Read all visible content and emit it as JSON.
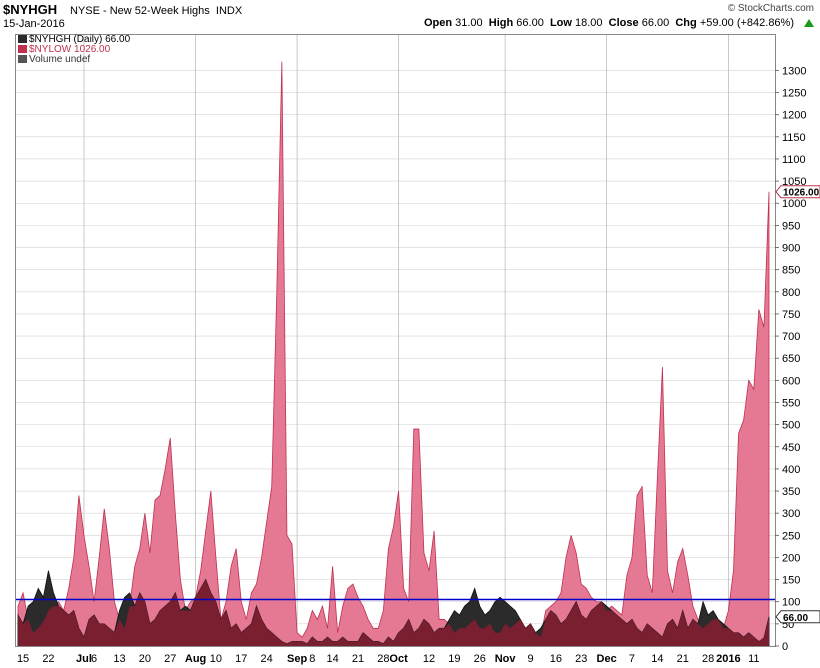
{
  "header": {
    "symbol": "$NYHGH",
    "description": "NYSE - New 52-Week Highs",
    "exchange": "INDX",
    "date": "15-Jan-2016",
    "brand": "© StockCharts.com",
    "open_label": "Open",
    "open": "31.00",
    "high_label": "High",
    "high": "66.00",
    "low_label": "Low",
    "low": "18.00",
    "close_label": "Close",
    "close": "66.00",
    "chg_label": "Chg",
    "chg": "+59.00 (+842.86%)",
    "chg_icon": "up-arrow-icon"
  },
  "legend": {
    "main": "$NYHGH (Daily) 66.00",
    "overlay": "$NYLOW 1026.00",
    "volume": "Volume undef"
  },
  "colors": {
    "nylow_fill": "#e57892",
    "nylow_line": "#c0314f",
    "nyhgh_fill": "#2b2b2b",
    "overlap_fill": "#7a1f30",
    "hline": "#0000cc",
    "grid": "#d3d3d3"
  },
  "chart_data": {
    "type": "area",
    "ylim": [
      0,
      1380
    ],
    "y_ticks": [
      0,
      50,
      100,
      150,
      200,
      250,
      300,
      350,
      400,
      450,
      500,
      550,
      600,
      650,
      700,
      750,
      800,
      850,
      900,
      950,
      1000,
      1050,
      1100,
      1150,
      1200,
      1250,
      1300
    ],
    "x_labels": [
      {
        "i": 1,
        "label": "15"
      },
      {
        "i": 6,
        "label": "22"
      },
      {
        "i": 13,
        "label": "Jul"
      },
      {
        "i": 15,
        "label": "6"
      },
      {
        "i": 20,
        "label": "13"
      },
      {
        "i": 25,
        "label": "20"
      },
      {
        "i": 30,
        "label": "27"
      },
      {
        "i": 35,
        "label": "Aug"
      },
      {
        "i": 39,
        "label": "10"
      },
      {
        "i": 44,
        "label": "17"
      },
      {
        "i": 49,
        "label": "24"
      },
      {
        "i": 55,
        "label": "Sep"
      },
      {
        "i": 58,
        "label": "8"
      },
      {
        "i": 62,
        "label": "14"
      },
      {
        "i": 67,
        "label": "21"
      },
      {
        "i": 72,
        "label": "28"
      },
      {
        "i": 75,
        "label": "Oct"
      },
      {
        "i": 81,
        "label": "12"
      },
      {
        "i": 86,
        "label": "19"
      },
      {
        "i": 91,
        "label": "26"
      },
      {
        "i": 96,
        "label": "Nov"
      },
      {
        "i": 101,
        "label": "9"
      },
      {
        "i": 106,
        "label": "16"
      },
      {
        "i": 111,
        "label": "23"
      },
      {
        "i": 116,
        "label": "Dec"
      },
      {
        "i": 121,
        "label": "7"
      },
      {
        "i": 126,
        "label": "14"
      },
      {
        "i": 131,
        "label": "21"
      },
      {
        "i": 136,
        "label": "28"
      },
      {
        "i": 140,
        "label": "2016"
      },
      {
        "i": 145,
        "label": "11"
      }
    ],
    "vlines": [
      13,
      35,
      55,
      75,
      96,
      116,
      140
    ],
    "hline": 105,
    "series": [
      {
        "name": "$NYLOW",
        "values": [
          90,
          120,
          60,
          30,
          40,
          55,
          80,
          90,
          100,
          80,
          130,
          200,
          340,
          250,
          180,
          100,
          200,
          310,
          220,
          100,
          60,
          40,
          90,
          180,
          220,
          300,
          210,
          330,
          340,
          400,
          470,
          300,
          150,
          80,
          100,
          110,
          170,
          260,
          350,
          200,
          60,
          100,
          180,
          220,
          100,
          60,
          120,
          140,
          200,
          280,
          360,
          800,
          1320,
          250,
          230,
          30,
          20,
          40,
          80,
          60,
          90,
          40,
          180,
          30,
          90,
          130,
          140,
          110,
          90,
          60,
          40,
          40,
          80,
          220,
          270,
          350,
          130,
          100,
          490,
          490,
          210,
          170,
          260,
          60,
          60,
          50,
          30,
          40,
          40,
          50,
          60,
          40,
          40,
          50,
          30,
          30,
          50,
          40,
          50,
          60,
          40,
          50,
          30,
          20,
          80,
          90,
          100,
          120,
          200,
          250,
          210,
          140,
          130,
          110,
          100,
          100,
          80,
          90,
          80,
          70,
          160,
          200,
          340,
          360,
          160,
          120,
          380,
          630,
          170,
          120,
          190,
          220,
          160,
          90,
          60,
          40,
          50,
          60,
          60,
          40,
          80,
          170,
          480,
          510,
          600,
          580,
          760,
          720,
          1026
        ]
      },
      {
        "name": "$NYHGH",
        "values": [
          70,
          50,
          90,
          100,
          130,
          110,
          170,
          120,
          90,
          80,
          70,
          80,
          40,
          20,
          60,
          70,
          50,
          50,
          40,
          30,
          80,
          110,
          120,
          90,
          120,
          100,
          50,
          60,
          80,
          90,
          100,
          120,
          80,
          90,
          80,
          110,
          130,
          150,
          120,
          100,
          60,
          80,
          40,
          50,
          30,
          40,
          50,
          90,
          60,
          40,
          30,
          20,
          10,
          5,
          10,
          10,
          10,
          5,
          20,
          10,
          10,
          20,
          10,
          10,
          20,
          10,
          10,
          10,
          30,
          20,
          10,
          10,
          5,
          20,
          10,
          30,
          40,
          60,
          30,
          40,
          60,
          50,
          30,
          40,
          40,
          60,
          80,
          70,
          90,
          100,
          130,
          90,
          70,
          80,
          100,
          110,
          100,
          90,
          80,
          60,
          40,
          50,
          30,
          40,
          60,
          80,
          70,
          50,
          60,
          80,
          100,
          70,
          60,
          80,
          90,
          100,
          90,
          80,
          70,
          60,
          50,
          60,
          40,
          30,
          50,
          40,
          30,
          20,
          50,
          60,
          40,
          80,
          40,
          60,
          50,
          100,
          70,
          80,
          60,
          50,
          40,
          30,
          30,
          20,
          30,
          20,
          10,
          18,
          66
        ]
      }
    ]
  }
}
